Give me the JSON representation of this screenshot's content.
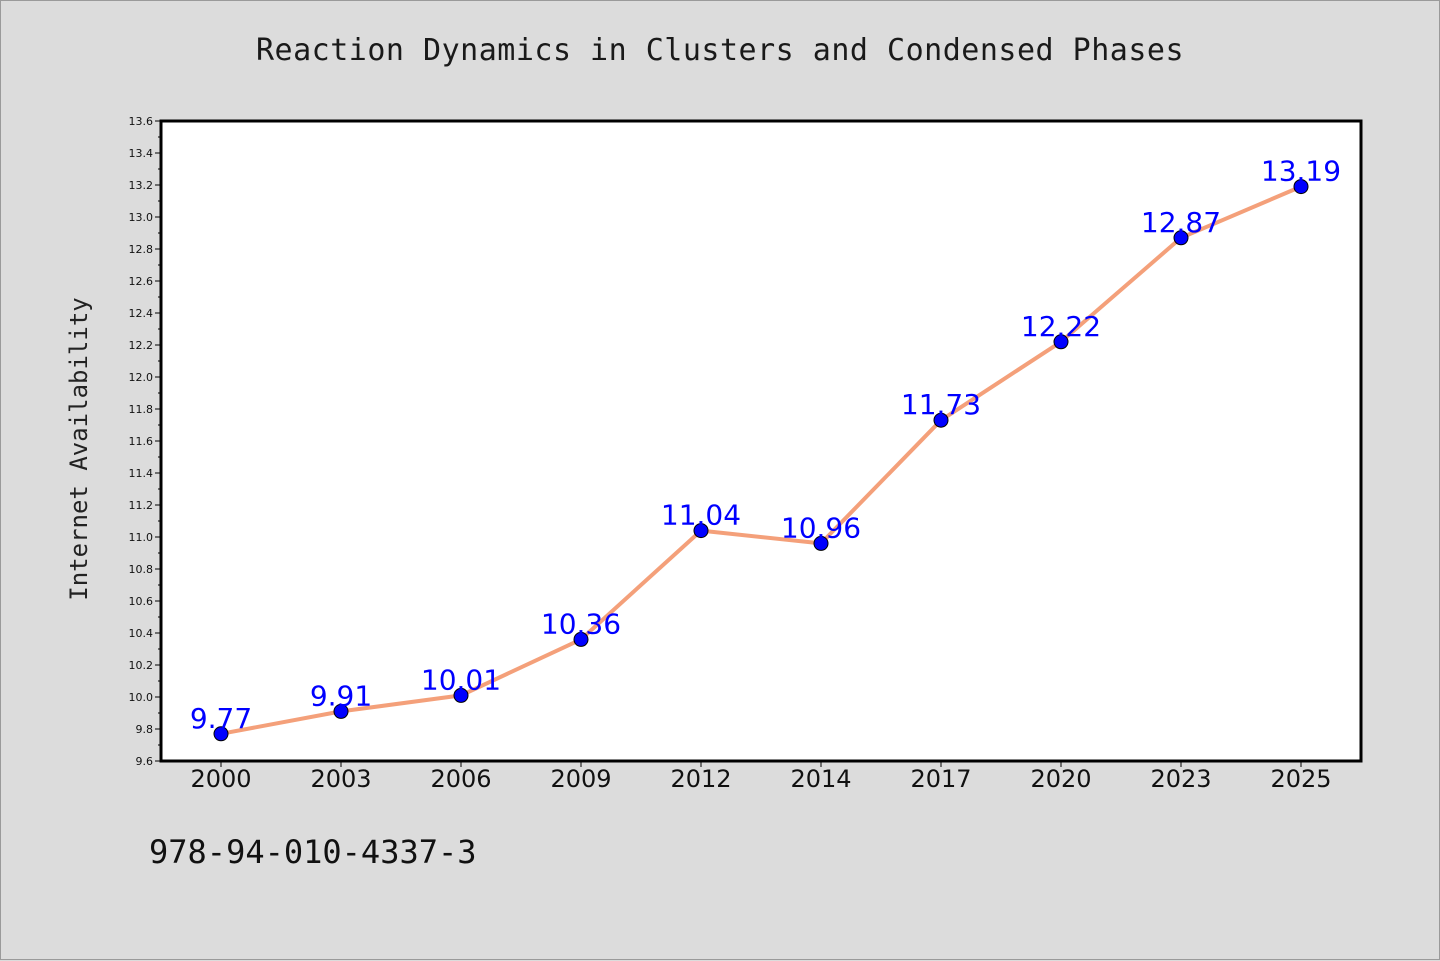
{
  "chart_data": {
    "type": "line",
    "title": "Reaction Dynamics in Clusters and Condensed Phases",
    "xlabel": "",
    "ylabel": "Internet Availability",
    "categories": [
      "2000",
      "2003",
      "2006",
      "2009",
      "2012",
      "2014",
      "2017",
      "2020",
      "2023",
      "2025"
    ],
    "series": [
      {
        "values": [
          9.77,
          9.91,
          10.01,
          10.36,
          11.04,
          10.96,
          11.73,
          12.22,
          12.87,
          13.19
        ],
        "line_color": "#f4a07a",
        "marker_color": "#0000ff",
        "label_color": "#0000ff"
      }
    ],
    "data_labels": [
      "9.77",
      "9.91",
      "10.01",
      "10.36",
      "11.04",
      "10.96",
      "11.73",
      "12.22",
      "12.87",
      "13.19"
    ],
    "ylim": [
      9.6,
      13.6
    ],
    "yticks": [
      "9.6",
      "9.8",
      "10.0",
      "10.2",
      "10.4",
      "10.6",
      "10.8",
      "11.0",
      "11.2",
      "11.4",
      "11.6",
      "11.8",
      "12.0",
      "12.2",
      "12.4",
      "12.6",
      "12.8",
      "13.0",
      "13.2",
      "13.4",
      "13.6"
    ],
    "grid": false,
    "legend": "none"
  },
  "annotation": {
    "isbn": "978-94-010-4337-3"
  },
  "colors": {
    "background": "#dcdcdc",
    "plot_background": "#ffffff",
    "axis": "#000000"
  }
}
